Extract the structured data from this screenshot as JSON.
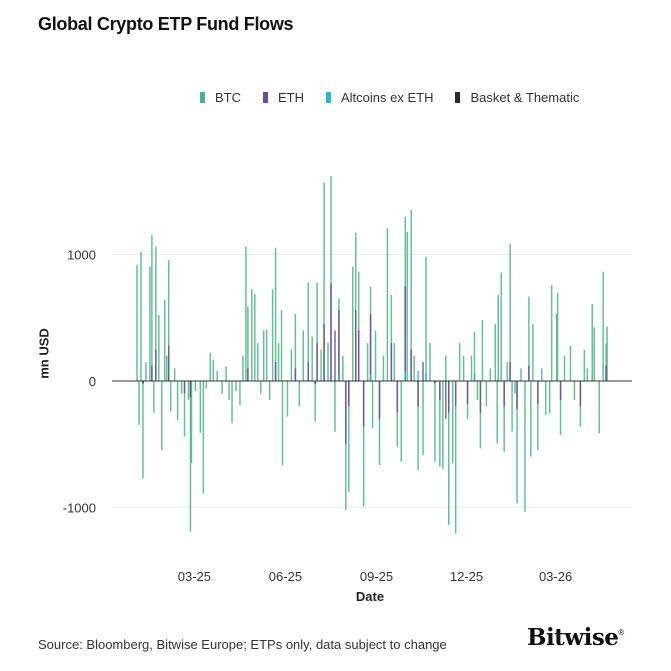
{
  "chart_data": {
    "type": "bar",
    "title": "Global Crypto ETP Fund Flows",
    "xlabel": "Date",
    "ylabel": "mn USD",
    "ylim": [
      -1350,
      1750
    ],
    "xlim": [
      "2025-01-01",
      "2026-04-26"
    ],
    "yticks": [
      {
        "value": 1000,
        "label": "1000"
      },
      {
        "value": 0,
        "label": "0"
      },
      {
        "value": -1000,
        "label": "-1000"
      }
    ],
    "xticks": [
      {
        "date": "2025-03-01",
        "label": "03-25"
      },
      {
        "date": "2025-06-01",
        "label": "06-25"
      },
      {
        "date": "2025-09-01",
        "label": "09-25"
      },
      {
        "date": "2025-12-01",
        "label": "12-25"
      },
      {
        "date": "2026-03-01",
        "label": "03-26"
      }
    ],
    "grid": "horizontal",
    "legend_position": "top-right",
    "series": [
      {
        "name": "BTC",
        "color": "#4fb386",
        "points": [
          [
            "2025-01-02",
            917
          ],
          [
            "2025-01-04",
            -348
          ],
          [
            "2025-01-06",
            1022
          ],
          [
            "2025-01-08",
            -770
          ],
          [
            "2025-01-11",
            150
          ],
          [
            "2025-01-15",
            904
          ],
          [
            "2025-01-17",
            1154
          ],
          [
            "2025-01-19",
            -250
          ],
          [
            "2025-01-21",
            1062
          ],
          [
            "2025-01-24",
            522
          ],
          [
            "2025-01-27",
            -545
          ],
          [
            "2025-01-30",
            640
          ],
          [
            "2025-02-01",
            200
          ],
          [
            "2025-02-03",
            957
          ],
          [
            "2025-02-05",
            -242
          ],
          [
            "2025-02-09",
            100
          ],
          [
            "2025-02-12",
            -308
          ],
          [
            "2025-02-16",
            -100
          ],
          [
            "2025-02-19",
            -440
          ],
          [
            "2025-02-23",
            -150
          ],
          [
            "2025-02-25",
            -1190
          ],
          [
            "2025-02-26",
            -650
          ],
          [
            "2025-03-02",
            -80
          ],
          [
            "2025-03-07",
            -410
          ],
          [
            "2025-03-10",
            -890
          ],
          [
            "2025-03-13",
            -60
          ],
          [
            "2025-03-17",
            224
          ],
          [
            "2025-03-20",
            166
          ],
          [
            "2025-03-24",
            80
          ],
          [
            "2025-03-29",
            -100
          ],
          [
            "2025-04-02",
            113
          ],
          [
            "2025-04-05",
            -150
          ],
          [
            "2025-04-08",
            -335
          ],
          [
            "2025-04-12",
            -80
          ],
          [
            "2025-04-16",
            -190
          ],
          [
            "2025-04-19",
            200
          ],
          [
            "2025-04-22",
            1062
          ],
          [
            "2025-04-24",
            588
          ],
          [
            "2025-04-28",
            725
          ],
          [
            "2025-05-01",
            688
          ],
          [
            "2025-05-04",
            300
          ],
          [
            "2025-05-07",
            -100
          ],
          [
            "2025-05-10",
            400
          ],
          [
            "2025-05-13",
            408
          ],
          [
            "2025-05-16",
            -150
          ],
          [
            "2025-05-19",
            725
          ],
          [
            "2025-05-22",
            1054
          ],
          [
            "2025-05-25",
            300
          ],
          [
            "2025-05-28",
            560
          ],
          [
            "2025-05-29",
            -664
          ],
          [
            "2025-06-03",
            -282
          ],
          [
            "2025-06-07",
            250
          ],
          [
            "2025-06-11",
            530
          ],
          [
            "2025-06-15",
            -200
          ],
          [
            "2025-06-19",
            400
          ],
          [
            "2025-06-24",
            777
          ],
          [
            "2025-06-28",
            350
          ],
          [
            "2025-07-01",
            -320
          ],
          [
            "2025-07-03",
            777
          ],
          [
            "2025-07-07",
            250
          ],
          [
            "2025-07-10",
            1568
          ],
          [
            "2025-07-14",
            300
          ],
          [
            "2025-07-17",
            1620
          ],
          [
            "2025-07-21",
            -400
          ],
          [
            "2025-07-25",
            653
          ],
          [
            "2025-07-29",
            200
          ],
          [
            "2025-08-01",
            -1020
          ],
          [
            "2025-08-04",
            -875
          ],
          [
            "2025-08-08",
            904
          ],
          [
            "2025-08-11",
            1172
          ],
          [
            "2025-08-14",
            864
          ],
          [
            "2025-08-19",
            -993
          ],
          [
            "2025-08-23",
            300
          ],
          [
            "2025-08-26",
            745
          ],
          [
            "2025-08-28",
            -373
          ],
          [
            "2025-08-31",
            400
          ],
          [
            "2025-09-04",
            -664
          ],
          [
            "2025-09-08",
            200
          ],
          [
            "2025-09-12",
            1207
          ],
          [
            "2025-09-16",
            680
          ],
          [
            "2025-09-19",
            300
          ],
          [
            "2025-09-22",
            -519
          ],
          [
            "2025-09-26",
            -638
          ],
          [
            "2025-09-30",
            1299
          ],
          [
            "2025-10-02",
            1180
          ],
          [
            "2025-10-06",
            1352
          ],
          [
            "2025-10-09",
            200
          ],
          [
            "2025-10-13",
            -704
          ],
          [
            "2025-10-18",
            -585
          ],
          [
            "2025-10-21",
            983
          ],
          [
            "2025-10-25",
            300
          ],
          [
            "2025-10-30",
            -638
          ],
          [
            "2025-11-04",
            -677
          ],
          [
            "2025-11-07",
            -698
          ],
          [
            "2025-11-10",
            200
          ],
          [
            "2025-11-13",
            -1138
          ],
          [
            "2025-11-17",
            -650
          ],
          [
            "2025-11-20",
            -1204
          ],
          [
            "2025-11-24",
            300
          ],
          [
            "2025-11-28",
            200
          ],
          [
            "2025-12-02",
            -300
          ],
          [
            "2025-12-06",
            200
          ],
          [
            "2025-12-09",
            390
          ],
          [
            "2025-12-12",
            -150
          ],
          [
            "2025-12-15",
            -532
          ],
          [
            "2025-12-17",
            482
          ],
          [
            "2025-12-21",
            -200
          ],
          [
            "2025-12-25",
            100
          ],
          [
            "2025-12-30",
            450
          ],
          [
            "2026-01-01",
            -493
          ],
          [
            "2026-01-02",
            680
          ],
          [
            "2026-01-05",
            856
          ],
          [
            "2026-01-08",
            -559
          ],
          [
            "2026-01-11",
            150
          ],
          [
            "2026-01-14",
            1083
          ],
          [
            "2026-01-16",
            -400
          ],
          [
            "2026-01-19",
            -100
          ],
          [
            "2026-01-21",
            -967
          ],
          [
            "2026-01-25",
            100
          ],
          [
            "2026-01-29",
            -1033
          ],
          [
            "2026-02-02",
            667
          ],
          [
            "2026-02-04",
            -598
          ],
          [
            "2026-02-06",
            450
          ],
          [
            "2026-02-11",
            -545
          ],
          [
            "2026-02-15",
            100
          ],
          [
            "2026-02-19",
            -269
          ],
          [
            "2026-02-23",
            -256
          ],
          [
            "2026-02-25",
            759
          ],
          [
            "2026-03-02",
            535
          ],
          [
            "2026-03-03",
            698
          ],
          [
            "2026-03-06",
            -427
          ],
          [
            "2026-03-10",
            200
          ],
          [
            "2026-03-16",
            277
          ],
          [
            "2026-03-20",
            -150
          ],
          [
            "2026-03-26",
            -361
          ],
          [
            "2026-03-30",
            245
          ],
          [
            "2026-04-02",
            100
          ],
          [
            "2026-04-07",
            609
          ],
          [
            "2026-04-09",
            424
          ],
          [
            "2026-04-14",
            -414
          ],
          [
            "2026-04-18",
            864
          ],
          [
            "2026-04-21",
            298
          ],
          [
            "2026-04-22",
            430
          ]
        ]
      },
      {
        "name": "ETH",
        "color": "#6a4a9c",
        "points": [
          [
            "2025-01-17",
            120
          ],
          [
            "2025-01-21",
            250
          ],
          [
            "2025-02-03",
            280
          ],
          [
            "2025-02-19",
            -100
          ],
          [
            "2025-02-25",
            -130
          ],
          [
            "2025-04-24",
            100
          ],
          [
            "2025-05-22",
            150
          ],
          [
            "2025-06-11",
            100
          ],
          [
            "2025-06-24",
            150
          ],
          [
            "2025-07-03",
            300
          ],
          [
            "2025-07-10",
            450
          ],
          [
            "2025-07-17",
            770
          ],
          [
            "2025-07-21",
            400
          ],
          [
            "2025-07-25",
            560
          ],
          [
            "2025-08-01",
            -500
          ],
          [
            "2025-08-04",
            -200
          ],
          [
            "2025-08-11",
            560
          ],
          [
            "2025-08-14",
            400
          ],
          [
            "2025-08-19",
            -360
          ],
          [
            "2025-08-26",
            530
          ],
          [
            "2025-09-04",
            -300
          ],
          [
            "2025-09-16",
            300
          ],
          [
            "2025-09-22",
            -250
          ],
          [
            "2025-09-30",
            745
          ],
          [
            "2025-10-06",
            250
          ],
          [
            "2025-10-13",
            -200
          ],
          [
            "2025-10-18",
            150
          ],
          [
            "2025-11-04",
            -150
          ],
          [
            "2025-11-10",
            -300
          ],
          [
            "2025-11-13",
            -250
          ],
          [
            "2025-11-20",
            -200
          ],
          [
            "2025-12-02",
            -180
          ],
          [
            "2025-12-15",
            -250
          ],
          [
            "2026-01-08",
            -200
          ],
          [
            "2026-01-14",
            150
          ],
          [
            "2026-01-21",
            -220
          ],
          [
            "2026-02-02",
            120
          ],
          [
            "2026-02-11",
            -180
          ],
          [
            "2026-03-06",
            -150
          ],
          [
            "2026-03-26",
            -200
          ],
          [
            "2026-04-21",
            120
          ]
        ]
      },
      {
        "name": "Altcoins ex ETH",
        "color": "#2fb3c6",
        "points": [
          [
            "2025-07-25",
            60
          ],
          [
            "2025-08-26",
            50
          ],
          [
            "2025-09-30",
            80
          ],
          [
            "2025-10-13",
            80
          ],
          [
            "2025-10-21",
            60
          ],
          [
            "2025-12-09",
            60
          ]
        ]
      },
      {
        "name": "Basket & Thematic",
        "color": "#2b2b2b",
        "points": [
          [
            "2025-01-08",
            -20
          ],
          [
            "2025-07-01",
            -20
          ],
          [
            "2025-10-30",
            -15
          ]
        ]
      }
    ]
  },
  "footer": {
    "source": "Source: Bloomberg, Bitwise Europe; ETPs only, data subject to change",
    "logo": "Bitwise",
    "logo_mark": "®"
  }
}
